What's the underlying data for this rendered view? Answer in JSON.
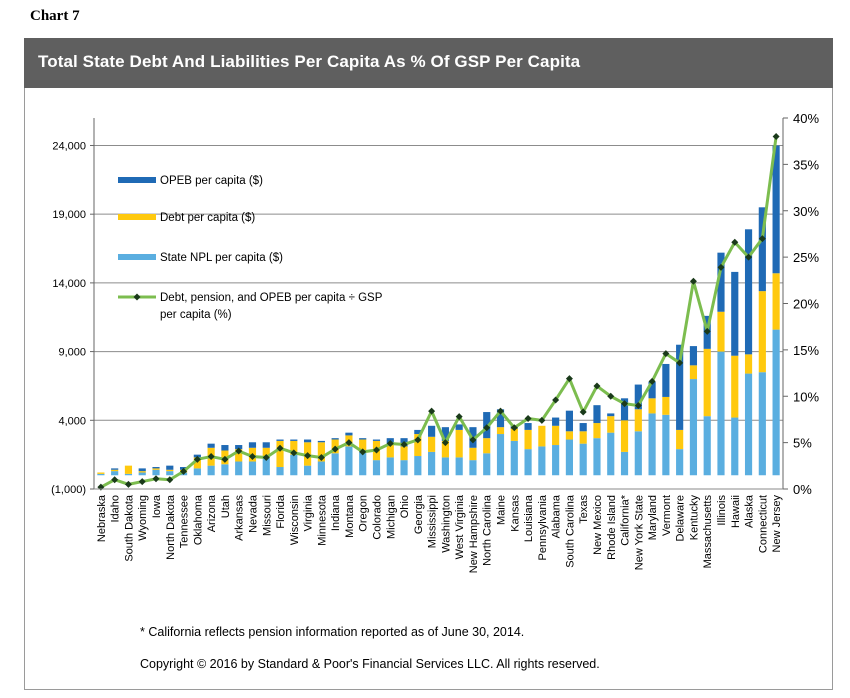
{
  "chart_label": "Chart 7",
  "footnote": "* California reflects pension information reported as of June 30, 2014.",
  "copyright": "Copyright © 2016 by Standard & Poor's Financial Services LLC. All rights reserved.",
  "colors": {
    "opeb": "#1f6ab5",
    "debt": "#ffc90e",
    "npl": "#5aaee0",
    "ratio_line": "#7cbd4f",
    "ratio_marker": "#1a3a1a",
    "title_bar": "#5f5f5f"
  },
  "chart_data": {
    "type": "bar",
    "stacked": true,
    "title": "Total State Debt And Liabilities Per Capita As % Of GSP Per Capita",
    "left_axis": {
      "ticks": [
        "(1,000)",
        "4,000",
        "9,000",
        "14,000",
        "19,000",
        "24,000"
      ],
      "range": [
        -1000,
        26000
      ]
    },
    "right_axis": {
      "ticks": [
        "0%",
        "5%",
        "10%",
        "15%",
        "20%",
        "25%",
        "30%",
        "35%",
        "40%"
      ],
      "range": [
        0,
        40
      ]
    },
    "grid": "horizontal",
    "legend_position": "top-left",
    "categories": [
      "Nebraska",
      "Idaho",
      "South Dakota",
      "Wyoming",
      "Iowa",
      "North Dakota",
      "Tennessee",
      "Oklahoma",
      "Arizona",
      "Utah",
      "Arkansas",
      "Nevada",
      "Missouri",
      "Florida",
      "Wisconsin",
      "Virginia",
      "Minnesota",
      "Indiana",
      "Montana",
      "Oregon",
      "Colorado",
      "Michigan",
      "Ohio",
      "Georgia",
      "Mississippi",
      "Washington",
      "West Virginia",
      "New Hampshire",
      "North Carolina",
      "Maine",
      "Kansas",
      "Louisiana",
      "Pennsylvania",
      "Alabama",
      "South Carolina",
      "Texas",
      "New Mexico",
      "Rhode Island",
      "California*",
      "New York State",
      "Maryland",
      "Vermont",
      "Delaware",
      "Kentucky",
      "Massachusetts",
      "Illinois",
      "Hawaii",
      "Alaska",
      "Connecticut",
      "New Jersey"
    ],
    "series": [
      {
        "name": "State NPL per capita ($)",
        "axis": "left",
        "values": [
          100,
          300,
          100,
          200,
          400,
          300,
          200,
          500,
          700,
          800,
          1000,
          1000,
          1300,
          600,
          1500,
          700,
          1000,
          1600,
          2100,
          1700,
          1100,
          1300,
          1100,
          1400,
          1700,
          1300,
          1300,
          1100,
          1600,
          3000,
          2500,
          1900,
          2100,
          2200,
          2600,
          2300,
          2700,
          3100,
          1700,
          3200,
          4500,
          4400,
          1900,
          7000,
          4300,
          9000,
          4200,
          7400,
          7500,
          10600
        ]
      },
      {
        "name": "Debt per capita ($)",
        "axis": "left",
        "values": [
          100,
          100,
          600,
          100,
          100,
          100,
          200,
          800,
          1300,
          1000,
          900,
          1000,
          700,
          1900,
          1000,
          1700,
          1400,
          1000,
          800,
          900,
          1400,
          1000,
          1000,
          1600,
          1100,
          1200,
          2000,
          900,
          1100,
          500,
          900,
          1400,
          1500,
          1400,
          600,
          900,
          1100,
          1200,
          2300,
          1600,
          1100,
          1300,
          1400,
          1000,
          4900,
          2900,
          4500,
          1400,
          5900,
          4100
        ]
      },
      {
        "name": "OPEB per capita ($)",
        "axis": "left",
        "values": [
          0,
          100,
          0,
          200,
          100,
          300,
          200,
          200,
          300,
          400,
          300,
          400,
          400,
          100,
          100,
          200,
          100,
          100,
          200,
          100,
          100,
          400,
          600,
          300,
          800,
          1000,
          400,
          1500,
          1900,
          1300,
          200,
          500,
          0,
          600,
          1500,
          600,
          1300,
          200,
          1600,
          1800,
          1200,
          2400,
          6200,
          1400,
          2400,
          4300,
          6100,
          9100,
          6100,
          9300
        ]
      },
      {
        "name": "Debt, pension, and OPEB per capita ÷ GSP per capita (%)",
        "axis": "right",
        "type": "line",
        "values": [
          0.2,
          1.0,
          0.5,
          0.8,
          1.1,
          1.0,
          1.9,
          3.2,
          3.5,
          3.2,
          4.1,
          3.5,
          3.4,
          4.4,
          3.9,
          3.6,
          3.4,
          4.3,
          5.0,
          4.0,
          4.2,
          4.9,
          4.8,
          5.3,
          8.4,
          5.0,
          7.8,
          5.3,
          6.6,
          8.4,
          6.6,
          7.6,
          7.4,
          9.6,
          11.9,
          8.3,
          11.1,
          10.0,
          9.2,
          9.0,
          11.6,
          14.6,
          13.6,
          22.4,
          17.0,
          23.9,
          26.6,
          25.0,
          27.0,
          38.0
        ]
      }
    ]
  }
}
